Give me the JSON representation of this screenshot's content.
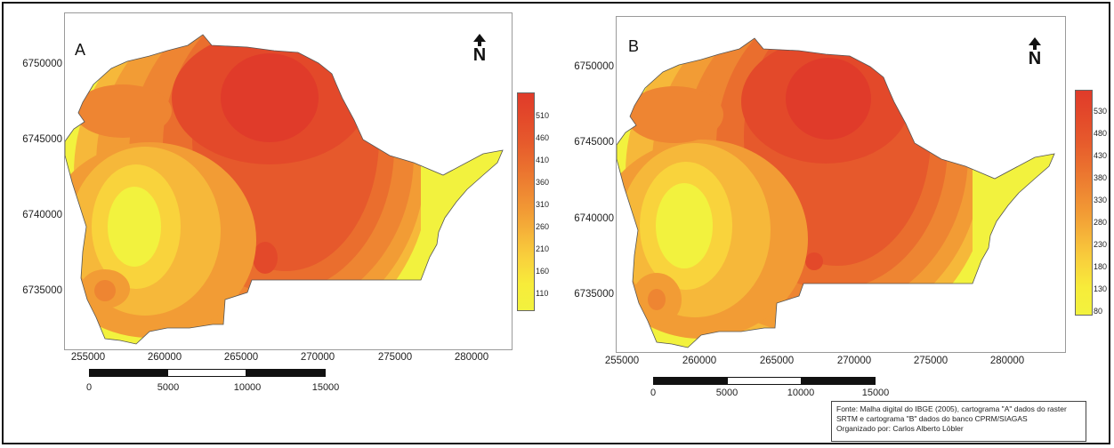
{
  "panels": [
    {
      "label": "A",
      "north_symbol": "N",
      "y_ticks": [
        "6750000",
        "6745000",
        "6740000",
        "6735000"
      ],
      "x_ticks": [
        "255000",
        "260000",
        "265000",
        "270000",
        "275000",
        "280000"
      ],
      "scale_ticks": [
        "0",
        "5000",
        "10000",
        "15000"
      ],
      "legend_values": [
        "510",
        "460",
        "410",
        "360",
        "310",
        "260",
        "210",
        "160",
        "110"
      ],
      "legend_colors": [
        "#e03b2a",
        "#e3492a",
        "#e6592c",
        "#ea6e2e",
        "#ee8532",
        "#f29c35",
        "#f6b83a",
        "#f9d33c",
        "#f7ec3a",
        "#f2f23e"
      ]
    },
    {
      "label": "B",
      "north_symbol": "N",
      "y_ticks": [
        "6750000",
        "6745000",
        "6740000",
        "6735000"
      ],
      "x_ticks": [
        "255000",
        "260000",
        "265000",
        "270000",
        "275000",
        "280000"
      ],
      "scale_ticks": [
        "0",
        "5000",
        "10000",
        "15000"
      ],
      "legend_values": [
        "530",
        "480",
        "430",
        "380",
        "330",
        "280",
        "230",
        "180",
        "130",
        "80"
      ],
      "legend_colors": [
        "#e03b2a",
        "#e3492a",
        "#e6592c",
        "#ea6e2e",
        "#ee8532",
        "#f29c35",
        "#f6b83a",
        "#f9d33c",
        "#f7ec3a",
        "#f2f23e"
      ]
    }
  ],
  "source": {
    "line1": "Fonte: Malha digital do IBGE (2005), cartograma \"A\" dados do raster",
    "line2": "SRTM e cartograma \"B\" dados do banco CPRM/SIAGAS",
    "line3": "Organizado por: Carlos Alberto Löbler"
  }
}
